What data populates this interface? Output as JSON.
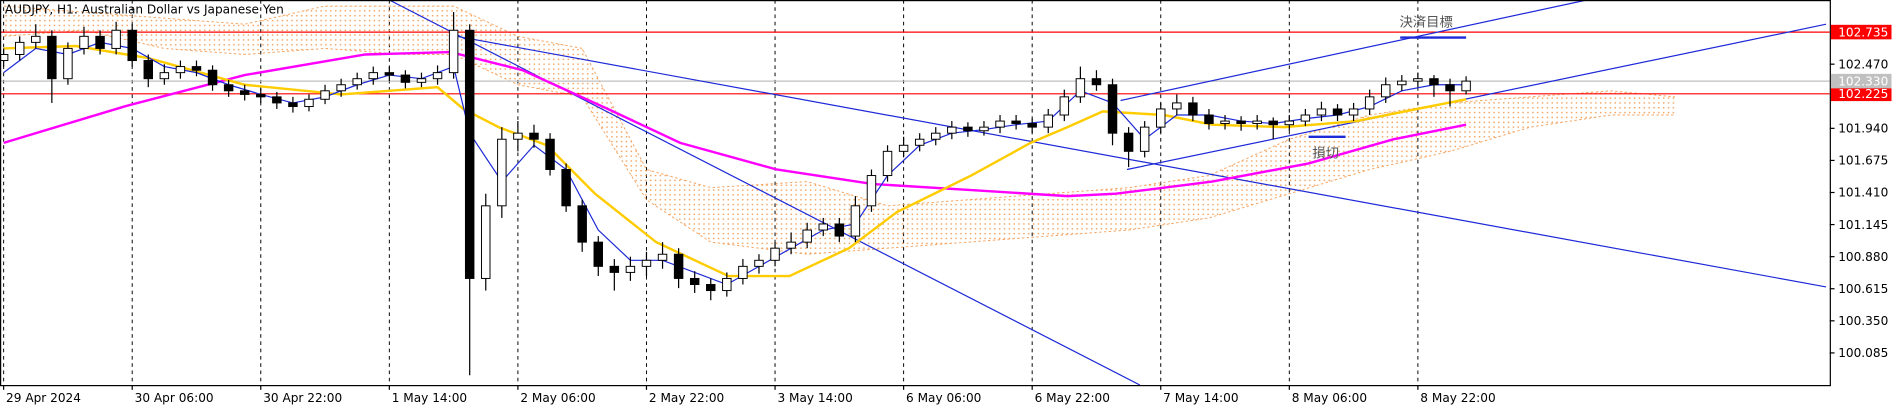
{
  "chart_data": {
    "type": "candlestick",
    "title": "AUDJPY, H1:  Australian Dollar vs Japanese Yen",
    "categories": [
      "29 Apr 2024",
      null,
      null,
      null,
      null,
      null,
      null,
      null,
      "30 Apr 06:00",
      null,
      null,
      null,
      null,
      null,
      null,
      null,
      "30 Apr 22:00",
      null,
      null,
      null,
      null,
      null,
      null,
      null,
      "1 May 14:00",
      null,
      null,
      null,
      null,
      null,
      null,
      null,
      "2 May 06:00",
      null,
      null,
      null,
      null,
      null,
      null,
      null,
      "2 May 22:00",
      null,
      null,
      null,
      null,
      null,
      null,
      null,
      "3 May 14:00",
      null,
      null,
      null,
      null,
      null,
      null,
      null,
      "6 May 06:00",
      null,
      null,
      null,
      null,
      null,
      null,
      null,
      "6 May 22:00",
      null,
      null,
      null,
      null,
      null,
      null,
      null,
      "7 May 14:00",
      null,
      null,
      null,
      null,
      null,
      null,
      null,
      "8 May 06:00",
      null,
      null,
      null,
      null,
      null,
      null,
      null,
      "8 May 22:00",
      null,
      null,
      null
    ],
    "open": [
      102.5,
      102.55,
      102.65,
      102.7,
      102.35,
      102.6,
      102.7,
      102.6,
      102.75,
      102.5,
      102.35,
      102.4,
      102.45,
      102.42,
      102.3,
      102.25,
      102.22,
      102.2,
      102.15,
      102.12,
      102.18,
      102.25,
      102.3,
      102.35,
      102.4,
      102.38,
      102.32,
      102.35,
      102.4,
      102.75,
      100.7,
      101.3,
      101.85,
      101.9,
      101.85,
      101.6,
      101.3,
      101.0,
      100.8,
      100.75,
      100.8,
      100.85,
      100.9,
      100.7,
      100.65,
      100.6,
      100.7,
      100.8,
      100.85,
      100.95,
      101.0,
      101.1,
      101.15,
      101.05,
      101.3,
      101.55,
      101.75,
      101.8,
      101.85,
      101.9,
      101.95,
      101.92,
      101.95,
      102.0,
      101.98,
      101.95,
      102.05,
      102.2,
      102.35,
      102.3,
      101.9,
      101.75,
      101.95,
      102.1,
      102.15,
      102.05,
      101.98,
      102.0,
      101.98,
      102.0,
      101.97,
      102.0,
      102.05,
      102.1,
      102.05,
      102.1,
      102.2,
      102.3,
      102.33,
      102.35,
      102.3,
      102.25
    ],
    "high": [
      102.6,
      102.7,
      102.8,
      102.75,
      102.65,
      102.78,
      102.75,
      102.82,
      102.8,
      102.55,
      102.47,
      102.5,
      102.5,
      102.46,
      102.34,
      102.3,
      102.27,
      102.24,
      102.2,
      102.22,
      102.3,
      102.35,
      102.4,
      102.45,
      102.45,
      102.42,
      102.4,
      102.46,
      102.9,
      102.8,
      101.4,
      101.95,
      102.0,
      101.97,
      101.9,
      101.65,
      101.35,
      101.05,
      100.86,
      100.88,
      100.92,
      101.0,
      100.95,
      100.76,
      100.7,
      100.75,
      100.86,
      100.9,
      101.0,
      101.08,
      101.16,
      101.2,
      101.2,
      101.38,
      101.6,
      101.8,
      101.87,
      101.9,
      101.95,
      102.0,
      101.99,
      102.0,
      102.05,
      102.05,
      102.02,
      102.1,
      102.26,
      102.45,
      102.42,
      102.35,
      101.95,
      102.0,
      102.15,
      102.22,
      102.2,
      102.1,
      102.05,
      102.04,
      102.05,
      102.03,
      102.05,
      102.1,
      102.16,
      102.14,
      102.15,
      102.26,
      102.36,
      102.38,
      102.4,
      102.38,
      102.35,
      102.37
    ],
    "low": [
      102.45,
      102.5,
      102.6,
      102.15,
      102.3,
      102.55,
      102.55,
      102.55,
      102.45,
      102.28,
      102.3,
      102.35,
      102.37,
      102.25,
      102.2,
      102.17,
      102.15,
      102.1,
      102.07,
      102.08,
      102.14,
      102.2,
      102.26,
      102.3,
      102.33,
      102.27,
      102.28,
      102.3,
      102.35,
      99.9,
      100.6,
      101.2,
      101.75,
      101.78,
      101.55,
      101.25,
      100.92,
      100.72,
      100.6,
      100.68,
      100.72,
      100.78,
      100.62,
      100.58,
      100.52,
      100.55,
      100.65,
      100.74,
      100.8,
      100.9,
      100.95,
      101.05,
      101.0,
      101.0,
      101.25,
      101.5,
      101.7,
      101.75,
      101.8,
      101.85,
      101.87,
      101.88,
      101.9,
      101.93,
      101.9,
      101.9,
      102.0,
      102.15,
      102.25,
      101.8,
      101.62,
      101.7,
      101.9,
      102.05,
      102.0,
      101.93,
      101.93,
      101.92,
      101.93,
      101.85,
      101.92,
      101.96,
      102.0,
      102.0,
      102.0,
      102.05,
      102.15,
      102.25,
      102.28,
      102.2,
      102.12,
      102.22
    ],
    "close": [
      102.55,
      102.65,
      102.7,
      102.35,
      102.6,
      102.7,
      102.6,
      102.75,
      102.5,
      102.35,
      102.4,
      102.45,
      102.42,
      102.3,
      102.25,
      102.22,
      102.2,
      102.15,
      102.12,
      102.18,
      102.25,
      102.3,
      102.35,
      102.4,
      102.38,
      102.32,
      102.35,
      102.4,
      102.75,
      100.7,
      101.3,
      101.85,
      101.9,
      101.85,
      101.6,
      101.3,
      101.0,
      100.8,
      100.75,
      100.8,
      100.85,
      100.9,
      100.7,
      100.65,
      100.6,
      100.7,
      100.8,
      100.85,
      100.95,
      101.0,
      101.1,
      101.15,
      101.05,
      101.3,
      101.55,
      101.75,
      101.8,
      101.85,
      101.9,
      101.95,
      101.92,
      101.95,
      102.0,
      101.98,
      101.95,
      102.05,
      102.2,
      102.35,
      102.3,
      101.9,
      101.75,
      101.95,
      102.1,
      102.15,
      102.05,
      101.98,
      102.0,
      101.98,
      102.0,
      101.97,
      102.0,
      102.05,
      102.1,
      102.05,
      102.1,
      102.2,
      102.3,
      102.33,
      102.35,
      102.3,
      102.25,
      102.33
    ],
    "xlim": [
      0,
      113.4
    ],
    "ylim": [
      99.82,
      103.0
    ],
    "yticks": [
      {
        "value": 102.47,
        "label": "102.470"
      },
      {
        "value": 101.94,
        "label": "101.940"
      },
      101.675,
      {
        "value": 101.41,
        "label": "101.410"
      },
      101.145,
      {
        "value": 100.88,
        "label": "100.880"
      },
      100.615,
      {
        "value": 100.35,
        "label": "100.350"
      },
      100.085
    ],
    "bull_color": "#ffffff",
    "bear_color": "#000000",
    "overlays": [
      {
        "color": "#ff00ff",
        "x": [
          0,
          7.5,
          15,
          22.5,
          27.8,
          32.3,
          37.6,
          42.1,
          48.1,
          54.1,
          60.2,
          66.2,
          69.2,
          75.2,
          81.2,
          86.5,
          91
        ],
        "values": [
          101.82,
          102.12,
          102.38,
          102.55,
          102.57,
          102.42,
          102.1,
          101.82,
          101.6,
          101.48,
          101.43,
          101.38,
          101.4,
          101.5,
          101.65,
          101.85,
          101.97
        ]
      },
      {
        "color": "#ffcc00",
        "x": [
          0,
          4.5,
          9,
          15,
          21,
          27,
          28.6,
          30.8,
          33.8,
          36.8,
          40.6,
          45.1,
          48.9,
          52.6,
          55.6,
          60.2,
          63.9,
          66.2,
          68.4,
          72.2,
          75.2,
          79.7,
          84.2,
          88.7,
          91
        ],
        "values": [
          102.6,
          102.62,
          102.52,
          102.3,
          102.22,
          102.28,
          102.1,
          101.95,
          101.8,
          101.4,
          101.0,
          100.72,
          100.72,
          100.95,
          101.25,
          101.55,
          101.82,
          101.95,
          102.08,
          102.05,
          101.97,
          101.95,
          102.0,
          102.12,
          102.18
        ]
      },
      {
        "color": "#1e2ad8",
        "x": [
          0,
          2,
          4,
          6,
          8,
          10,
          12,
          14,
          16,
          18,
          20,
          22,
          24,
          26,
          28,
          29,
          31,
          33,
          35,
          37,
          39,
          41,
          43,
          45,
          47,
          49,
          51,
          53,
          55,
          57,
          59,
          61,
          63,
          65,
          67,
          69,
          71,
          73,
          75,
          77,
          79,
          81,
          83,
          85,
          87,
          89,
          91
        ],
        "values": [
          102.4,
          102.6,
          102.55,
          102.65,
          102.6,
          102.45,
          102.4,
          102.3,
          102.22,
          102.15,
          102.2,
          102.3,
          102.38,
          102.35,
          102.45,
          101.9,
          101.5,
          101.8,
          101.6,
          101.1,
          100.85,
          100.85,
          100.75,
          100.65,
          100.8,
          100.95,
          101.1,
          101.15,
          101.55,
          101.8,
          101.9,
          101.93,
          101.97,
          102.0,
          102.25,
          102.15,
          101.85,
          102.05,
          102.05,
          102.0,
          101.98,
          102.02,
          102.05,
          102.12,
          102.25,
          102.3,
          102.3
        ]
      }
    ],
    "cloud": {
      "color": "#f4a460",
      "x": [
        0,
        5,
        10,
        15,
        20,
        25,
        28,
        32,
        36,
        40,
        44,
        50,
        55,
        60,
        65,
        70,
        75,
        80,
        85,
        90,
        95,
        100,
        104
      ],
      "upper": [
        102.95,
        102.9,
        102.85,
        102.8,
        102.95,
        102.95,
        102.95,
        102.7,
        102.6,
        101.6,
        101.45,
        101.5,
        101.3,
        101.35,
        101.4,
        101.45,
        101.55,
        101.85,
        102.05,
        102.15,
        102.2,
        102.25,
        102.2
      ],
      "lower": [
        102.7,
        102.75,
        102.6,
        102.55,
        102.6,
        102.55,
        102.55,
        102.3,
        102.2,
        101.35,
        101.0,
        100.9,
        100.95,
        101.0,
        101.05,
        101.1,
        101.2,
        101.4,
        101.6,
        101.75,
        101.95,
        102.05,
        102.05
      ]
    },
    "trend_lines": {
      "color": "#1e2ad8",
      "lines": [
        {
          "x": [
            24,
            70.7
          ],
          "y": [
            103.0,
            99.82
          ]
        },
        {
          "x": [
            28.2,
            113.4
          ],
          "y": [
            102.7,
            100.63
          ]
        },
        {
          "x": [
            69.5,
            98.5
          ],
          "y": [
            102.17,
            103.0
          ]
        },
        {
          "x": [
            69.9,
            113.4
          ],
          "y": [
            101.6,
            102.8
          ]
        },
        {
          "x": [
            86.9,
            91
          ],
          "y": [
            102.69,
            102.69
          ]
        },
        {
          "x": [
            81.2,
            83.5
          ],
          "y": [
            101.87,
            101.87
          ]
        }
      ]
    },
    "price_lines": {
      "color": "#ff0000",
      "values": [
        102.735,
        102.225
      ]
    },
    "bid_line": {
      "value": 102.33,
      "label": "102.330"
    },
    "annotations": [
      "決済目標",
      "損切"
    ]
  }
}
